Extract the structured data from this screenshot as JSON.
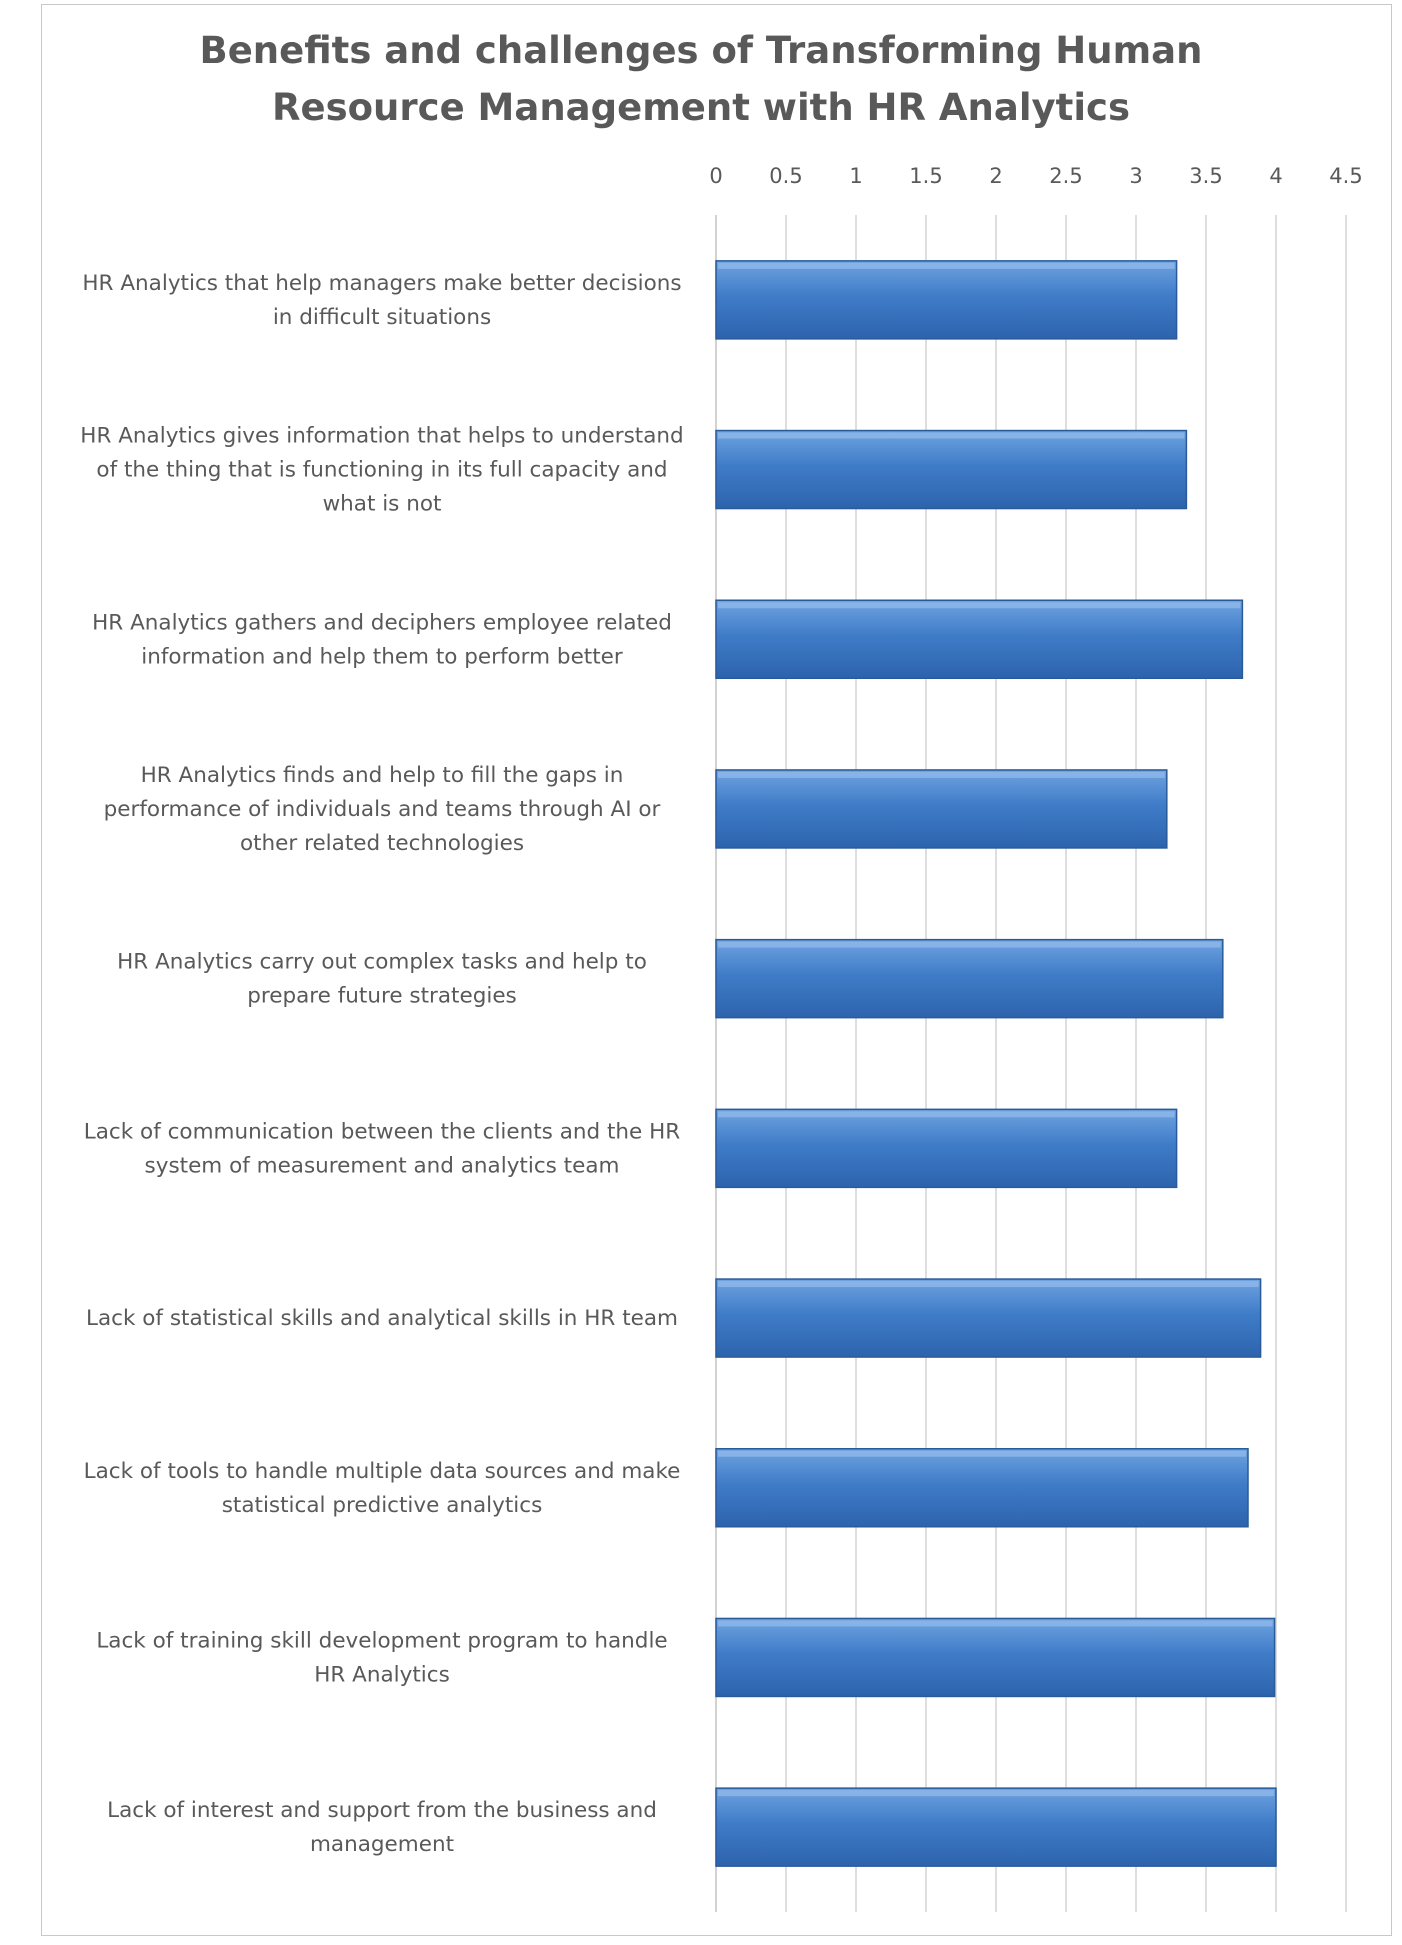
{
  "chart_data": {
    "type": "bar",
    "orientation": "horizontal",
    "title_lines": [
      "Benefits and challenges of Transforming Human",
      "Resource Management with HR Analytics"
    ],
    "categories": [
      [
        "HR Analytics that help managers make better decisions",
        "in difficult situations"
      ],
      [
        "HR Analytics gives information that helps to understand",
        "of the thing that is functioning in its full capacity and",
        "what is not"
      ],
      [
        "HR Analytics gathers and deciphers employee related",
        "information and help them to perform better"
      ],
      [
        "HR Analytics finds and help to fill the gaps in",
        "performance of individuals and teams through AI or",
        "other related technologies"
      ],
      [
        "HR Analytics carry out complex tasks and help to",
        "prepare future strategies"
      ],
      [
        "Lack of communication between the clients and the HR",
        "system of measurement and analytics team"
      ],
      [
        "Lack of statistical skills and analytical skills in HR team"
      ],
      [
        "Lack of tools to handle multiple data sources and make",
        "statistical predictive analytics"
      ],
      [
        "Lack of training skill development program to handle",
        "HR Analytics"
      ],
      [
        "Lack of interest and support from the business and",
        "management"
      ]
    ],
    "values": [
      3.29,
      3.36,
      3.76,
      3.22,
      3.62,
      3.29,
      3.89,
      3.8,
      3.99,
      4.0
    ],
    "xlim": [
      0,
      4.5
    ],
    "xticks": [
      "0",
      "0.5",
      "1",
      "1.5",
      "2",
      "2.5",
      "3",
      "3.5",
      "4",
      "4.5"
    ],
    "axis_position": "top",
    "grid": "vertical",
    "legend": "none",
    "bar_color": "#3f7cc8",
    "bar_edge_color": "#2a5a9a"
  }
}
